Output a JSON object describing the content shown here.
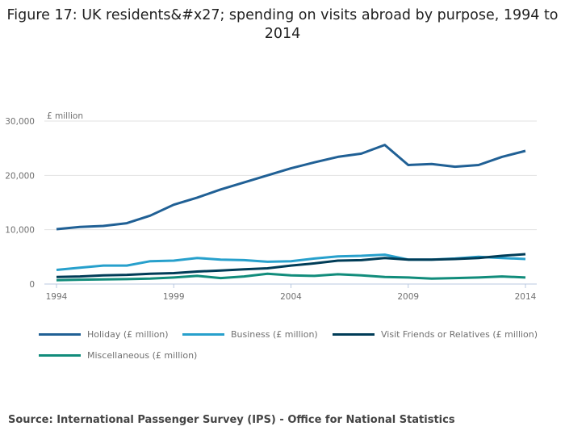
{
  "chart_data": {
    "type": "line",
    "title": "Figure 17: UK residents&#x27; spending on visits abroad by purpose, 1994 to 2014",
    "ylabel": "£ million",
    "xlabel": "",
    "ylim": [
      0,
      30000
    ],
    "yticks": [
      "0",
      "10,000",
      "20,000",
      "30,000"
    ],
    "ytick_values": [
      0,
      10000,
      20000,
      30000
    ],
    "xticks": [
      "1994",
      "1999",
      "2004",
      "2009",
      "2014"
    ],
    "grid": true,
    "legend_position": "bottom",
    "x": [
      1994,
      1995,
      1996,
      1997,
      1998,
      1999,
      2000,
      2001,
      2002,
      2003,
      2004,
      2005,
      2006,
      2007,
      2008,
      2009,
      2010,
      2011,
      2012,
      2013,
      2014
    ],
    "series": [
      {
        "name": "Holiday (£ million)",
        "color": "#206095",
        "values": [
          10100,
          10500,
          10700,
          11200,
          12600,
          14600,
          15900,
          17400,
          18700,
          20000,
          21300,
          22400,
          23400,
          24000,
          25600,
          21900,
          22100,
          21600,
          21900,
          23400,
          24500
        ]
      },
      {
        "name": "Business (£ million)",
        "color": "#27a0cc",
        "values": [
          2600,
          3000,
          3400,
          3400,
          4200,
          4300,
          4800,
          4500,
          4400,
          4100,
          4200,
          4700,
          5100,
          5200,
          5400,
          4500,
          4500,
          4700,
          5000,
          4800,
          4600
        ]
      },
      {
        "name": "Visit Friends or Relatives (£ million)",
        "color": "#003c57",
        "values": [
          1300,
          1400,
          1600,
          1700,
          1900,
          2000,
          2300,
          2500,
          2700,
          2900,
          3400,
          3800,
          4300,
          4400,
          4800,
          4500,
          4500,
          4600,
          4800,
          5200,
          5500
        ]
      },
      {
        "name": "Miscellaneous (£ million)",
        "color": "#118c7b",
        "values": [
          700,
          800,
          850,
          900,
          1000,
          1200,
          1500,
          1100,
          1400,
          1900,
          1600,
          1500,
          1800,
          1600,
          1300,
          1200,
          1000,
          1100,
          1200,
          1400,
          1200
        ]
      }
    ]
  },
  "source": "Source: International Passenger Survey (IPS) - Office for National Statistics"
}
